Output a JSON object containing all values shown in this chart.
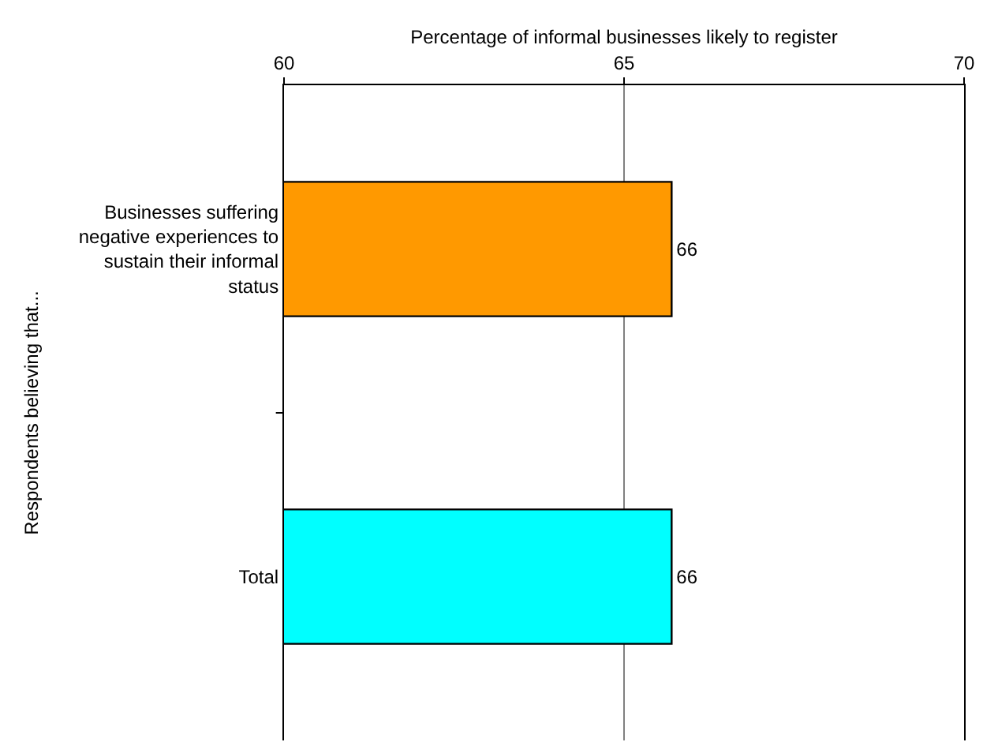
{
  "chart_data": {
    "type": "bar",
    "orientation": "horizontal",
    "xlabel": "Percentage of informal businesses likely to register",
    "ylabel": "Respondents believing that...",
    "categories": [
      "Businesses suffering negative experiences to sustain their informal status",
      "Total"
    ],
    "values": [
      65.7,
      65.7
    ],
    "colors": [
      "#ff9900",
      "#00ffff"
    ],
    "value_labels": [
      "66",
      "66"
    ],
    "xlim": [
      60,
      70
    ],
    "xticks": [
      60,
      65,
      70
    ],
    "grid": "x"
  }
}
